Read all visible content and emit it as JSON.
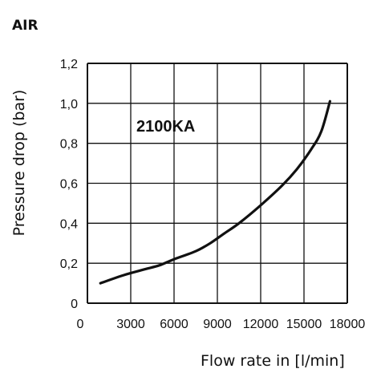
{
  "chart_data": {
    "type": "line",
    "title": "AIR",
    "annotation": "2100KA",
    "xlabel": "Flow rate in [l/min]",
    "ylabel": "Pressure drop (bar)",
    "xlim": [
      0,
      18000
    ],
    "ylim": [
      0,
      1.2
    ],
    "grid": true,
    "xticks": [
      "0",
      "3000",
      "6000",
      "9000",
      "12000",
      "15000",
      "18000"
    ],
    "xtick_values": [
      0,
      3000,
      6000,
      9000,
      12000,
      15000,
      18000
    ],
    "yticks": [
      "0",
      "0,2",
      "0,4",
      "0,6",
      "0,8",
      "1,0",
      "1,2"
    ],
    "ytick_values": [
      0,
      0.2,
      0.4,
      0.6,
      0.8,
      1.0,
      1.2
    ],
    "series": [
      {
        "x": [
          900,
          2500,
          4000,
          5000,
          6000,
          7500,
          8500,
          9500,
          10500,
          12000,
          13500,
          14500,
          15500,
          16200,
          16800
        ],
        "y": [
          0.1,
          0.14,
          0.17,
          0.19,
          0.22,
          0.26,
          0.3,
          0.35,
          0.4,
          0.49,
          0.59,
          0.67,
          0.77,
          0.86,
          1.01
        ],
        "color": "#111111"
      }
    ]
  }
}
